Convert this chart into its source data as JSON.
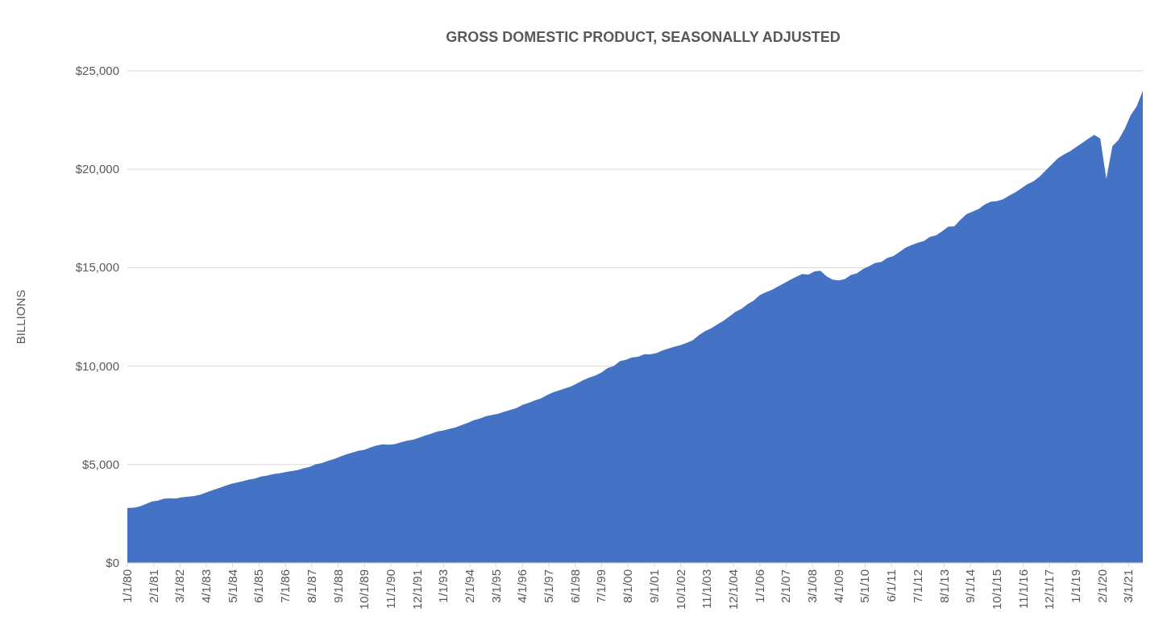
{
  "chart_data": {
    "type": "area",
    "title": "GROSS DOMESTIC PRODUCT, SEASONALLY ADJUSTED",
    "ylabel": "BILLIONS",
    "color": "#4472c4",
    "grid": "y",
    "x": [
      "1980-01",
      "1980-04",
      "1980-07",
      "1980-10",
      "1981-01",
      "1981-04",
      "1981-07",
      "1981-10",
      "1982-01",
      "1982-04",
      "1982-07",
      "1982-10",
      "1983-01",
      "1983-04",
      "1983-07",
      "1983-10",
      "1984-01",
      "1984-04",
      "1984-07",
      "1984-10",
      "1985-01",
      "1985-04",
      "1985-07",
      "1985-10",
      "1986-01",
      "1986-04",
      "1986-07",
      "1986-10",
      "1987-01",
      "1987-04",
      "1987-07",
      "1987-10",
      "1988-01",
      "1988-04",
      "1988-07",
      "1988-10",
      "1989-01",
      "1989-04",
      "1989-07",
      "1989-10",
      "1990-01",
      "1990-04",
      "1990-07",
      "1990-10",
      "1991-01",
      "1991-04",
      "1991-07",
      "1991-10",
      "1992-01",
      "1992-04",
      "1992-07",
      "1992-10",
      "1993-01",
      "1993-04",
      "1993-07",
      "1993-10",
      "1994-01",
      "1994-04",
      "1994-07",
      "1994-10",
      "1995-01",
      "1995-04",
      "1995-07",
      "1995-10",
      "1996-01",
      "1996-04",
      "1996-07",
      "1996-10",
      "1997-01",
      "1997-04",
      "1997-07",
      "1997-10",
      "1998-01",
      "1998-04",
      "1998-07",
      "1998-10",
      "1999-01",
      "1999-04",
      "1999-07",
      "1999-10",
      "2000-01",
      "2000-04",
      "2000-07",
      "2000-10",
      "2001-01",
      "2001-04",
      "2001-07",
      "2001-10",
      "2002-01",
      "2002-04",
      "2002-07",
      "2002-10",
      "2003-01",
      "2003-04",
      "2003-07",
      "2003-10",
      "2004-01",
      "2004-04",
      "2004-07",
      "2004-10",
      "2005-01",
      "2005-04",
      "2005-07",
      "2005-10",
      "2006-01",
      "2006-04",
      "2006-07",
      "2006-10",
      "2007-01",
      "2007-04",
      "2007-07",
      "2007-10",
      "2008-01",
      "2008-04",
      "2008-07",
      "2008-10",
      "2009-01",
      "2009-04",
      "2009-07",
      "2009-10",
      "2010-01",
      "2010-04",
      "2010-07",
      "2010-10",
      "2011-01",
      "2011-04",
      "2011-07",
      "2011-10",
      "2012-01",
      "2012-04",
      "2012-07",
      "2012-10",
      "2013-01",
      "2013-04",
      "2013-07",
      "2013-10",
      "2014-01",
      "2014-04",
      "2014-07",
      "2014-10",
      "2015-01",
      "2015-04",
      "2015-07",
      "2015-10",
      "2016-01",
      "2016-04",
      "2016-07",
      "2016-10",
      "2017-01",
      "2017-04",
      "2017-07",
      "2017-10",
      "2018-01",
      "2018-04",
      "2018-07",
      "2018-10",
      "2019-01",
      "2019-04",
      "2019-07",
      "2019-10",
      "2020-01",
      "2020-04",
      "2020-07",
      "2020-10",
      "2021-01",
      "2021-04",
      "2021-07",
      "2021-10"
    ],
    "values": [
      2790,
      2800,
      2860,
      2990,
      3120,
      3160,
      3260,
      3280,
      3270,
      3330,
      3370,
      3400,
      3470,
      3580,
      3690,
      3790,
      3910,
      4010,
      4080,
      4150,
      4230,
      4290,
      4390,
      4440,
      4510,
      4550,
      4610,
      4660,
      4720,
      4810,
      4880,
      5010,
      5070,
      5190,
      5280,
      5400,
      5510,
      5610,
      5700,
      5750,
      5870,
      5960,
      6020,
      6000,
      6040,
      6130,
      6210,
      6260,
      6360,
      6470,
      6570,
      6680,
      6730,
      6810,
      6880,
      7010,
      7120,
      7250,
      7330,
      7460,
      7520,
      7580,
      7680,
      7770,
      7870,
      8030,
      8130,
      8260,
      8360,
      8520,
      8660,
      8770,
      8870,
      8970,
      9120,
      9290,
      9420,
      9520,
      9680,
      9900,
      10000,
      10250,
      10320,
      10440,
      10470,
      10600,
      10600,
      10660,
      10790,
      10890,
      10990,
      11070,
      11180,
      11310,
      11570,
      11770,
      11920,
      12110,
      12300,
      12520,
      12760,
      12910,
      13140,
      13330,
      13600,
      13750,
      13870,
      14040,
      14210,
      14380,
      14540,
      14680,
      14650,
      14810,
      14840,
      14560,
      14390,
      14350,
      14420,
      14630,
      14720,
      14930,
      15080,
      15240,
      15290,
      15500,
      15590,
      15800,
      16020,
      16150,
      16260,
      16360,
      16570,
      16640,
      16850,
      17080,
      17100,
      17430,
      17720,
      17850,
      17980,
      18210,
      18350,
      18380,
      18470,
      18660,
      18820,
      19030,
      19240,
      19380,
      19620,
      19940,
      20240,
      20550,
      20740,
      20910,
      21120,
      21330,
      21540,
      21750,
      21560,
      19520,
      21170,
      21490,
      22040,
      22740,
      23200,
      23990
    ],
    "xlim": [
      "1980-01",
      "2021-10"
    ],
    "xticks": [
      {
        "value": "1980-01",
        "label": "1/1/80"
      },
      {
        "value": "1981-02",
        "label": "2/1/81"
      },
      {
        "value": "1982-03",
        "label": "3/1/82"
      },
      {
        "value": "1983-04",
        "label": "4/1/83"
      },
      {
        "value": "1984-05",
        "label": "5/1/84"
      },
      {
        "value": "1985-06",
        "label": "6/1/85"
      },
      {
        "value": "1986-07",
        "label": "7/1/86"
      },
      {
        "value": "1987-08",
        "label": "8/1/87"
      },
      {
        "value": "1988-09",
        "label": "9/1/88"
      },
      {
        "value": "1989-10",
        "label": "10/1/89"
      },
      {
        "value": "1990-11",
        "label": "11/1/90"
      },
      {
        "value": "1991-12",
        "label": "12/1/91"
      },
      {
        "value": "1993-01",
        "label": "1/1/93"
      },
      {
        "value": "1994-02",
        "label": "2/1/94"
      },
      {
        "value": "1995-03",
        "label": "3/1/95"
      },
      {
        "value": "1996-04",
        "label": "4/1/96"
      },
      {
        "value": "1997-05",
        "label": "5/1/97"
      },
      {
        "value": "1998-06",
        "label": "6/1/98"
      },
      {
        "value": "1999-07",
        "label": "7/1/99"
      },
      {
        "value": "2000-08",
        "label": "8/1/00"
      },
      {
        "value": "2001-09",
        "label": "9/1/01"
      },
      {
        "value": "2002-10",
        "label": "10/1/02"
      },
      {
        "value": "2003-11",
        "label": "11/1/03"
      },
      {
        "value": "2004-12",
        "label": "12/1/04"
      },
      {
        "value": "2006-01",
        "label": "1/1/06"
      },
      {
        "value": "2007-02",
        "label": "2/1/07"
      },
      {
        "value": "2008-03",
        "label": "3/1/08"
      },
      {
        "value": "2009-04",
        "label": "4/1/09"
      },
      {
        "value": "2010-05",
        "label": "5/1/10"
      },
      {
        "value": "2011-06",
        "label": "6/1/11"
      },
      {
        "value": "2012-07",
        "label": "7/1/12"
      },
      {
        "value": "2013-08",
        "label": "8/1/13"
      },
      {
        "value": "2014-09",
        "label": "9/1/14"
      },
      {
        "value": "2015-10",
        "label": "10/1/15"
      },
      {
        "value": "2016-11",
        "label": "11/1/16"
      },
      {
        "value": "2017-12",
        "label": "12/1/17"
      },
      {
        "value": "2019-01",
        "label": "1/1/19"
      },
      {
        "value": "2020-02",
        "label": "2/1/20"
      },
      {
        "value": "2021-03",
        "label": "3/1/21"
      }
    ],
    "ylim": [
      0,
      25000
    ],
    "yticks": [
      {
        "value": 0,
        "label": "$0"
      },
      {
        "value": 5000,
        "label": "$5,000"
      },
      {
        "value": 10000,
        "label": "$10,000"
      },
      {
        "value": 15000,
        "label": "$15,000"
      },
      {
        "value": 20000,
        "label": "$20,000"
      },
      {
        "value": 25000,
        "label": "$25,000"
      }
    ]
  }
}
